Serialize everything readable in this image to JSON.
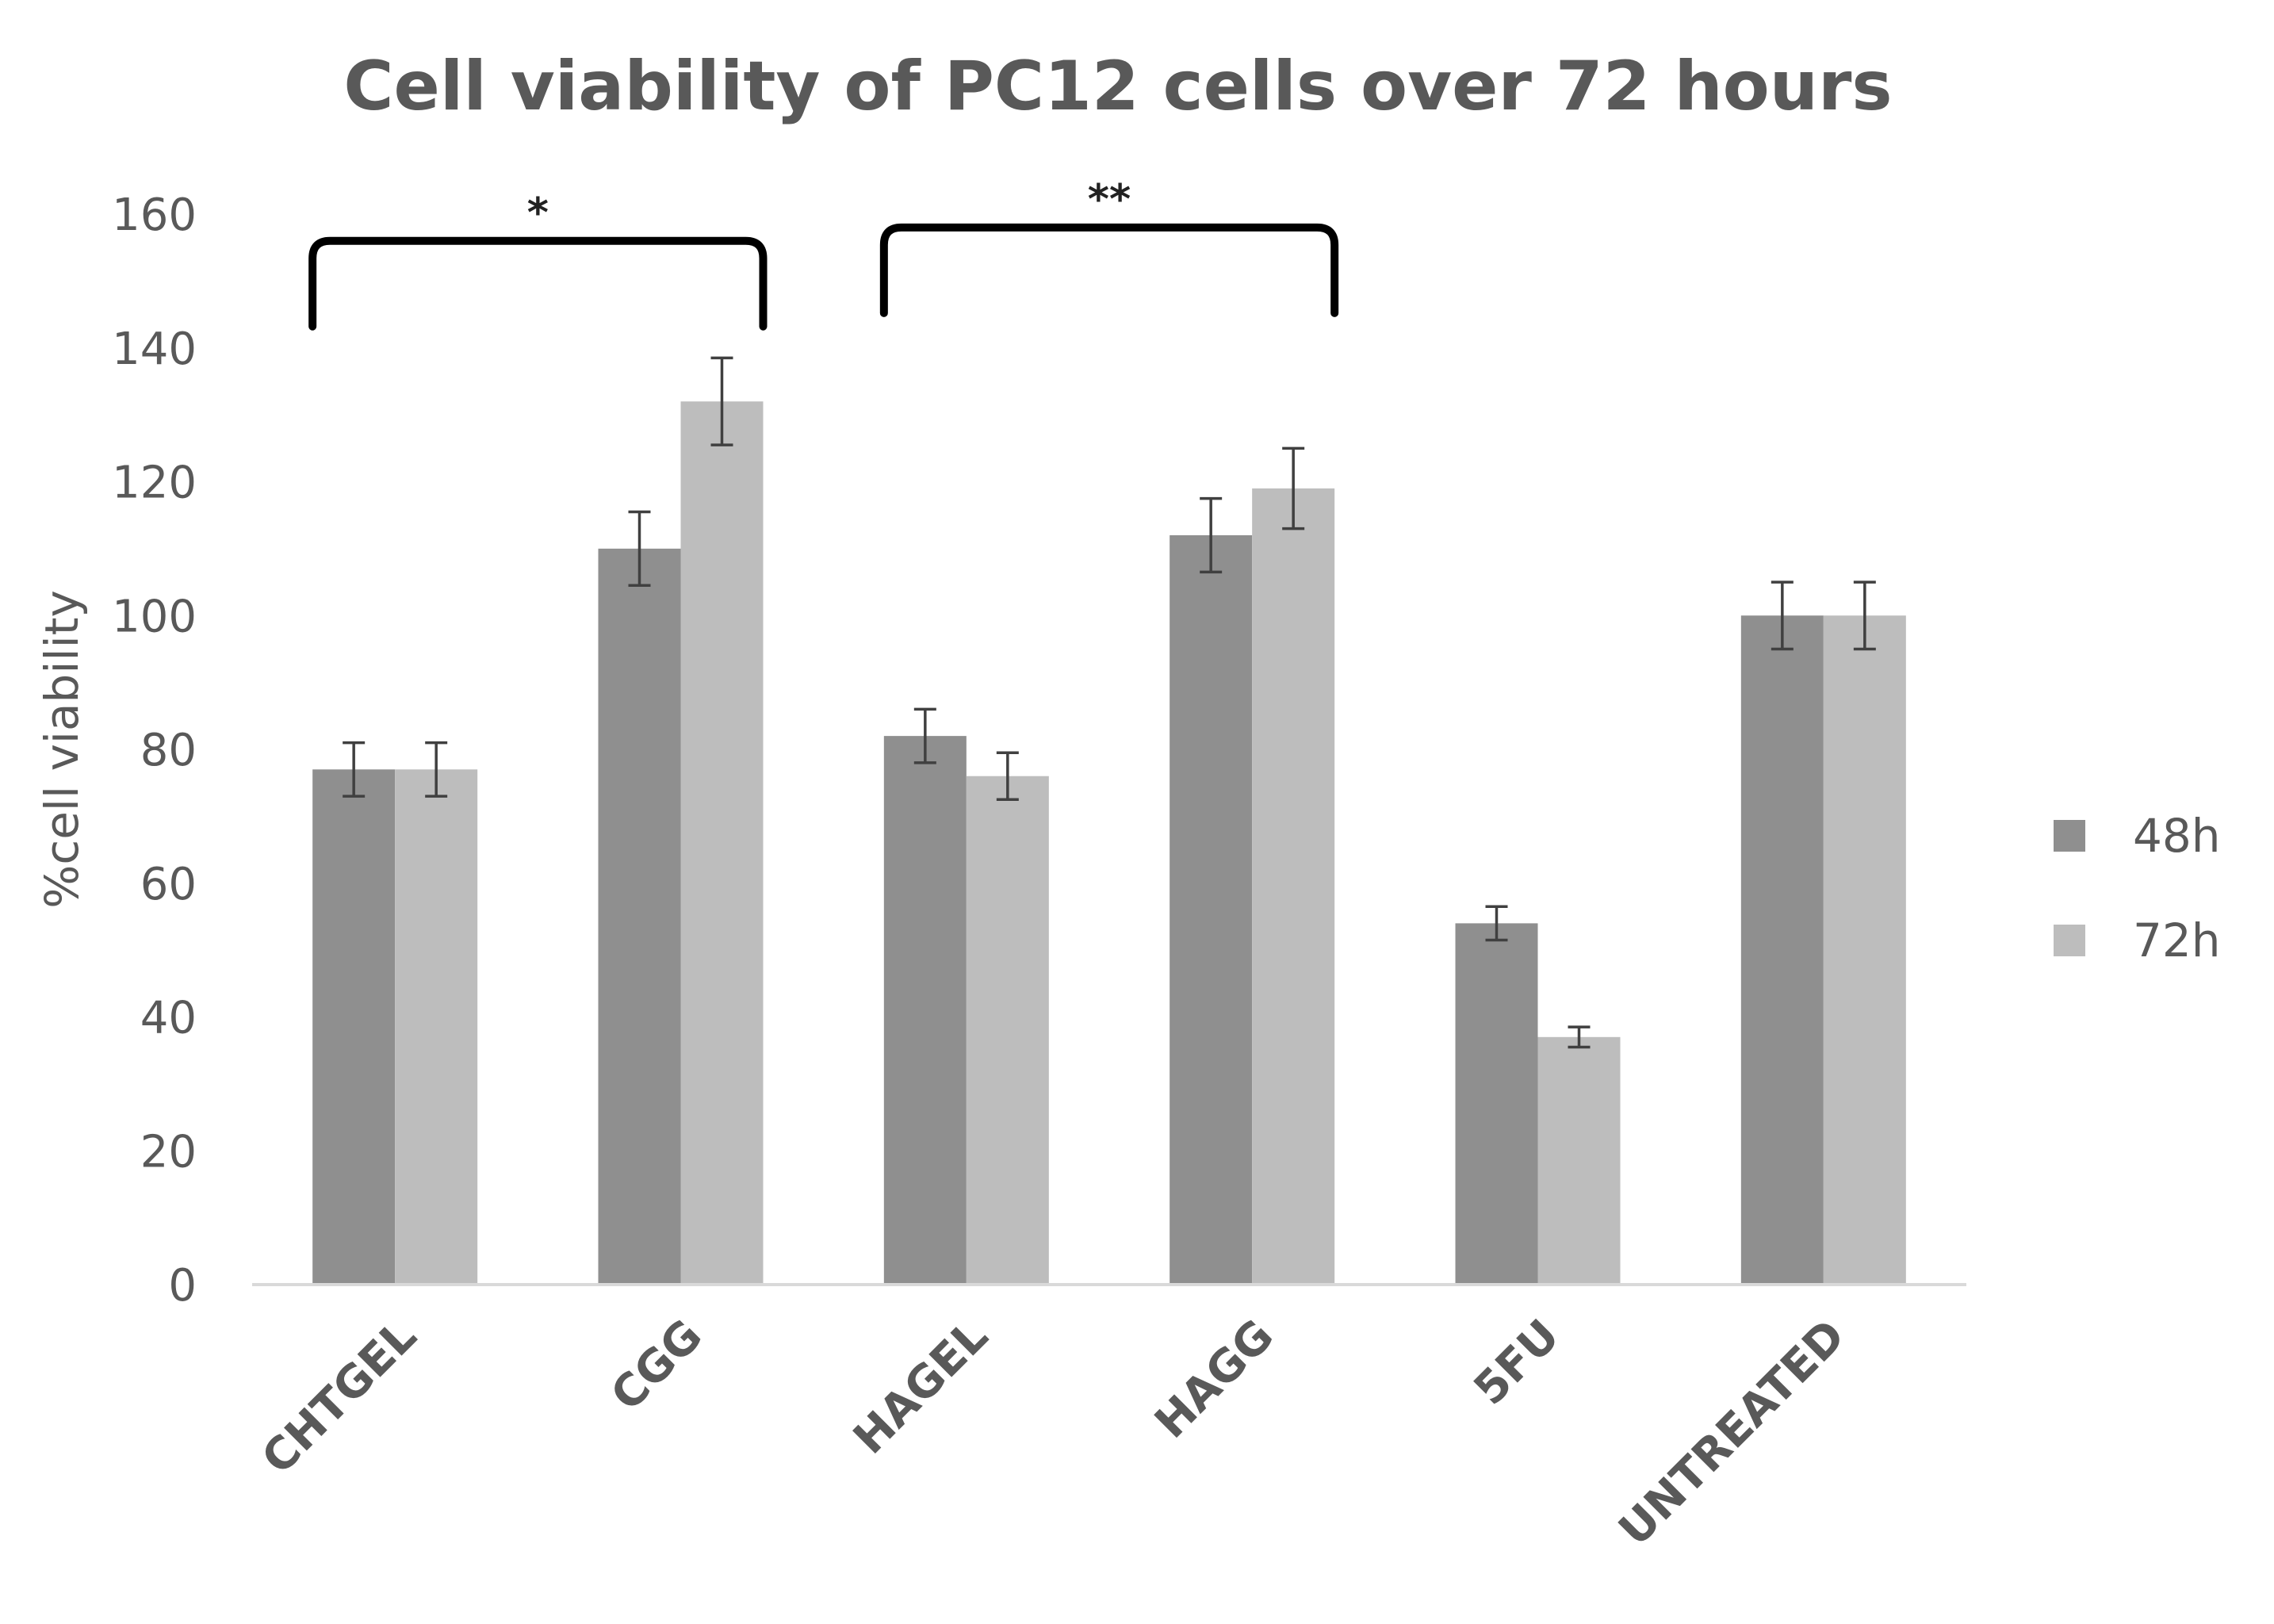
{
  "chart_data": {
    "type": "bar",
    "title": "Cell viability of PC12 cells over 72 hours",
    "xlabel": "",
    "ylabel": "%cell viability",
    "ylim": [
      0,
      160
    ],
    "yticks": [
      0,
      20,
      40,
      60,
      80,
      100,
      120,
      140,
      160
    ],
    "grid": false,
    "legend_position": "right",
    "categories": [
      "CHTGEL",
      "CGG",
      "HAGEL",
      "HAGG",
      "5FU",
      "UNTREATED"
    ],
    "series": [
      {
        "name": "48h",
        "color": "#8f8f8f",
        "values": [
          77,
          110,
          82,
          112,
          54,
          100
        ],
        "errors": [
          4,
          5.5,
          4,
          5.5,
          2.5,
          5
        ]
      },
      {
        "name": "72h",
        "color": "#bdbdbd",
        "values": [
          77,
          132,
          76,
          119,
          37,
          100
        ],
        "errors": [
          4,
          6.5,
          3.5,
          6,
          1.5,
          5
        ]
      }
    ],
    "annotations": [
      {
        "label": "*",
        "from_category": "CHTGEL",
        "to_category": "CGG",
        "level": 156
      },
      {
        "label": "**",
        "from_category": "HAGEL",
        "to_category": "HAGG",
        "level": 158
      }
    ]
  }
}
